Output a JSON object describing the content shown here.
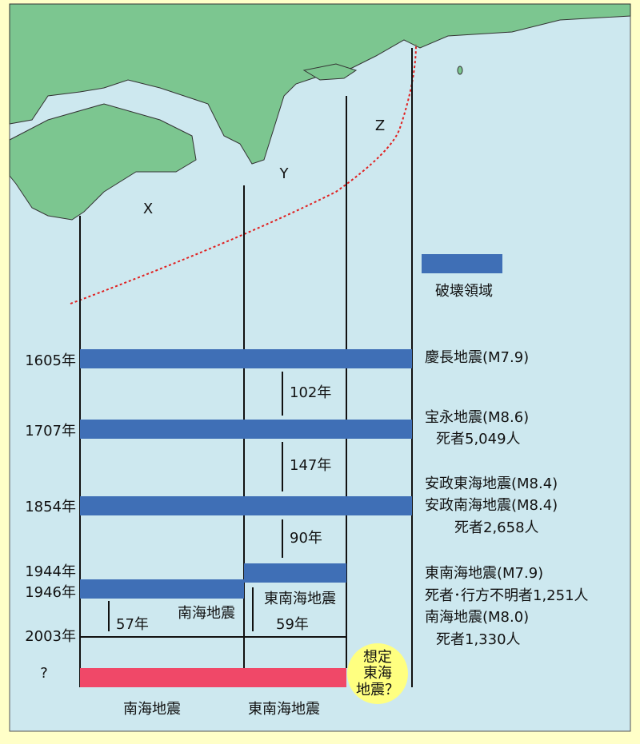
{
  "zones": [
    "X",
    "Y",
    "Z"
  ],
  "legend": "破壊領域",
  "years": [
    "1605年",
    "1707年",
    "1854年",
    "1944年",
    "1946年",
    "2003年",
    "?"
  ],
  "intervals": [
    "102年",
    "147年",
    "90年",
    "57年",
    "59年"
  ],
  "bar_labels": [
    "南海地震",
    "東南海地震"
  ],
  "bottom_labels": [
    "南海地震",
    "東南海地震"
  ],
  "future": [
    "想定",
    "東海",
    "地震？"
  ],
  "events": [
    "慶長地震(M7.9)",
    "宝永地震(M8.6)",
    "死者5,049人",
    "安政東海地震(M8.4)",
    "安政南海地震(M8.4)",
    "死者2,658人",
    "東南海地震(M7.9)",
    "死者･行方不明者1,251人",
    "南海地震(M8.0)",
    "死者1,330人"
  ]
}
